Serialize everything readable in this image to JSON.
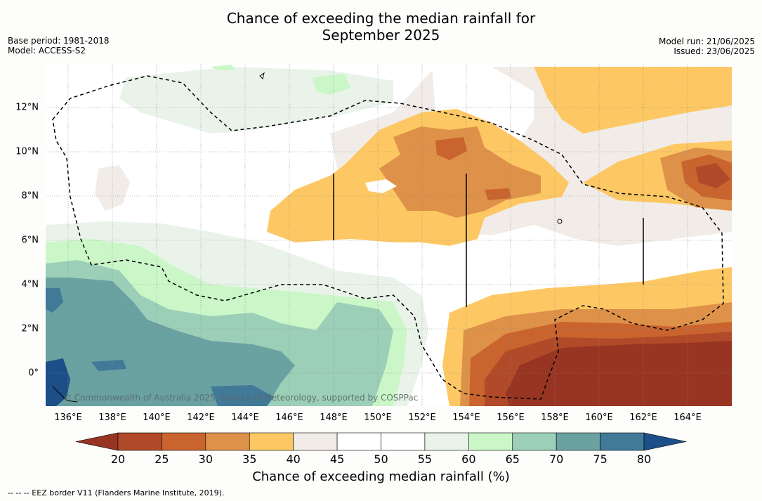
{
  "header": {
    "title_line1": "Chance of exceeding the median rainfall for",
    "title_line2": "September 2025",
    "base_period": "Base period: 1981-2018",
    "model": "Model: ACCESS-S2",
    "model_run": "Model run: 21/06/2025",
    "issued": "Issued: 23/06/2025"
  },
  "map": {
    "lon_labels": [
      "136°E",
      "138°E",
      "140°E",
      "142°E",
      "144°E",
      "146°E",
      "148°E",
      "150°E",
      "152°E",
      "154°E",
      "156°E",
      "158°E",
      "160°E",
      "162°E",
      "164°E"
    ],
    "lat_labels": [
      "12°N",
      "10°N",
      "8°N",
      "6°N",
      "4°N",
      "2°N",
      "0°"
    ],
    "copyright": "© Commonwealth of Australia 2025, Bureau of Meteorology, supported by COSPPac"
  },
  "colorbar": {
    "ticks": [
      "20",
      "25",
      "30",
      "35",
      "40",
      "45",
      "50",
      "55",
      "60",
      "65",
      "70",
      "75",
      "80"
    ],
    "colors": [
      "#983422",
      "#b04a28",
      "#c9642f",
      "#de9148",
      "#fdc863",
      "#f1ece7",
      "#ffffff",
      "#ffffff",
      "#eaf3ea",
      "#cbf7c8",
      "#9ccfb7",
      "#6aa1a1",
      "#417999",
      "#1c4f87"
    ],
    "label": "Chance of exceeding median rainfall (%)"
  },
  "footnote": "-- -- -- EEZ border V11 (Flanders Marine Institute, 2019)."
}
